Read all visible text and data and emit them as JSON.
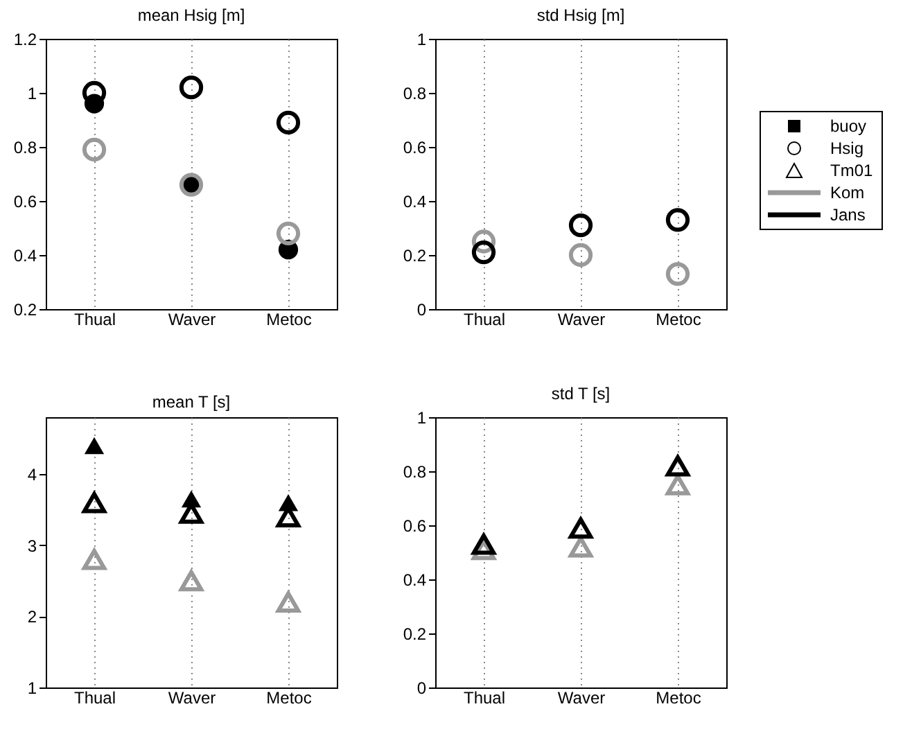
{
  "chart_data": [
    {
      "type": "scatter",
      "title": "mean Hsig [m]",
      "categories": [
        "Thual",
        "Waver",
        "Metoc"
      ],
      "marker": "circle",
      "grid": "x",
      "ylim": [
        0.2,
        1.2
      ],
      "yticks": [
        0.2,
        0.4,
        0.6,
        0.8,
        1,
        1.2
      ],
      "series": [
        {
          "color": "#000000",
          "marker": "circle",
          "values": [
            0.96,
            0.66,
            0.42
          ]
        },
        {
          "color": "#999999",
          "values": [
            0.79,
            0.66,
            0.48
          ]
        },
        {
          "color": "#000000",
          "values": [
            1.0,
            1.02,
            0.89
          ]
        }
      ]
    },
    {
      "type": "scatter",
      "title": "std Hsig [m]",
      "categories": [
        "Thual",
        "Waver",
        "Metoc"
      ],
      "marker": "circle",
      "grid": "x",
      "ylim": [
        0,
        1
      ],
      "yticks": [
        0,
        0.2,
        0.4,
        0.6,
        0.8,
        1
      ],
      "legend": "right",
      "annotations": [
        "Hsig",
        "Tm01"
      ],
      "series": [
        {
          "name": "buoy",
          "color": "#000000",
          "marker": "square",
          "values": [
            null,
            null,
            null
          ]
        },
        {
          "name": "Kom",
          "color": "#999999",
          "values": [
            0.25,
            0.2,
            0.13
          ]
        },
        {
          "name": "Jans",
          "color": "#000000",
          "values": [
            0.21,
            0.31,
            0.33
          ]
        }
      ]
    },
    {
      "type": "scatter",
      "title": "mean T [s]",
      "categories": [
        "Thual",
        "Waver",
        "Metoc"
      ],
      "marker": "triangle",
      "grid": "x",
      "ylim": [
        1,
        4.8
      ],
      "yticks": [
        1,
        2,
        3,
        4
      ],
      "series": [
        {
          "color": "#000000",
          "marker": "triangle",
          "values": [
            4.4,
            3.65,
            3.6
          ]
        },
        {
          "color": "#999999",
          "values": [
            2.8,
            2.5,
            2.2
          ]
        },
        {
          "color": "#000000",
          "values": [
            3.6,
            3.45,
            3.4
          ]
        }
      ]
    },
    {
      "type": "scatter",
      "title": "std T [s]",
      "categories": [
        "Thual",
        "Waver",
        "Metoc"
      ],
      "marker": "triangle",
      "grid": "x",
      "ylim": [
        0,
        1
      ],
      "yticks": [
        0,
        0.2,
        0.4,
        0.6,
        0.8,
        1
      ],
      "series": [
        {
          "color": "#999999",
          "values": [
            0.51,
            0.52,
            0.75
          ]
        },
        {
          "color": "#000000",
          "values": [
            0.53,
            0.59,
            0.82
          ]
        }
      ]
    }
  ]
}
